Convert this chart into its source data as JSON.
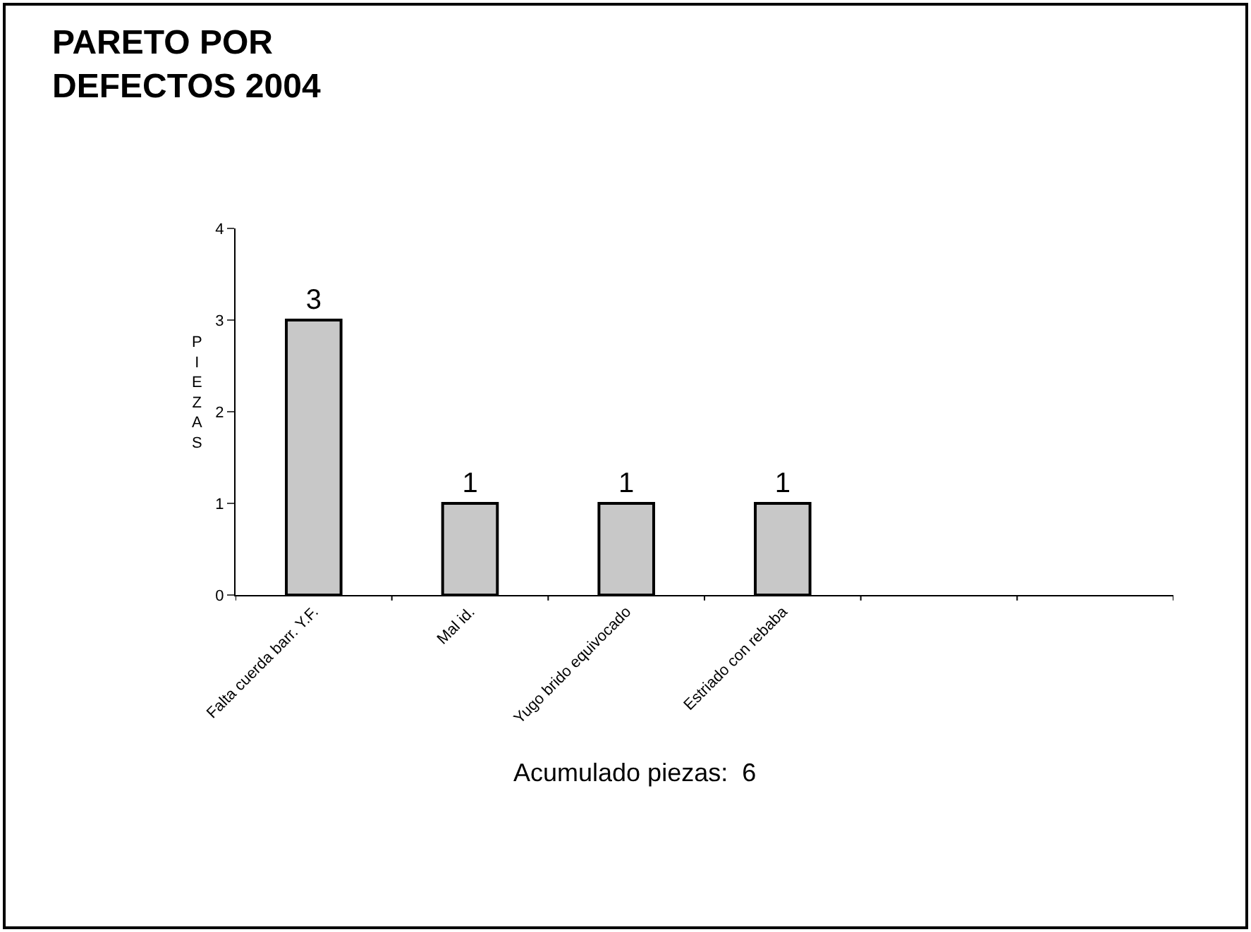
{
  "chart_data": {
    "type": "bar",
    "title": "PARETO POR\nDEFECTOS 2004",
    "ylabel": "PIEZAS",
    "categories": [
      "Falta cuerda barr. Y.F.",
      "Mal id.",
      "Yugo brido equivocado",
      "Estriado con rebaba",
      null,
      null
    ],
    "values": [
      3,
      1,
      1,
      1,
      null,
      null
    ],
    "color": "#c8c8c8",
    "ylim": [
      0,
      4
    ],
    "yticks": [
      0,
      1,
      2,
      3,
      4
    ],
    "legend": false,
    "data_labels": true,
    "annotations": [
      "Acumulado piezas:  6"
    ]
  }
}
